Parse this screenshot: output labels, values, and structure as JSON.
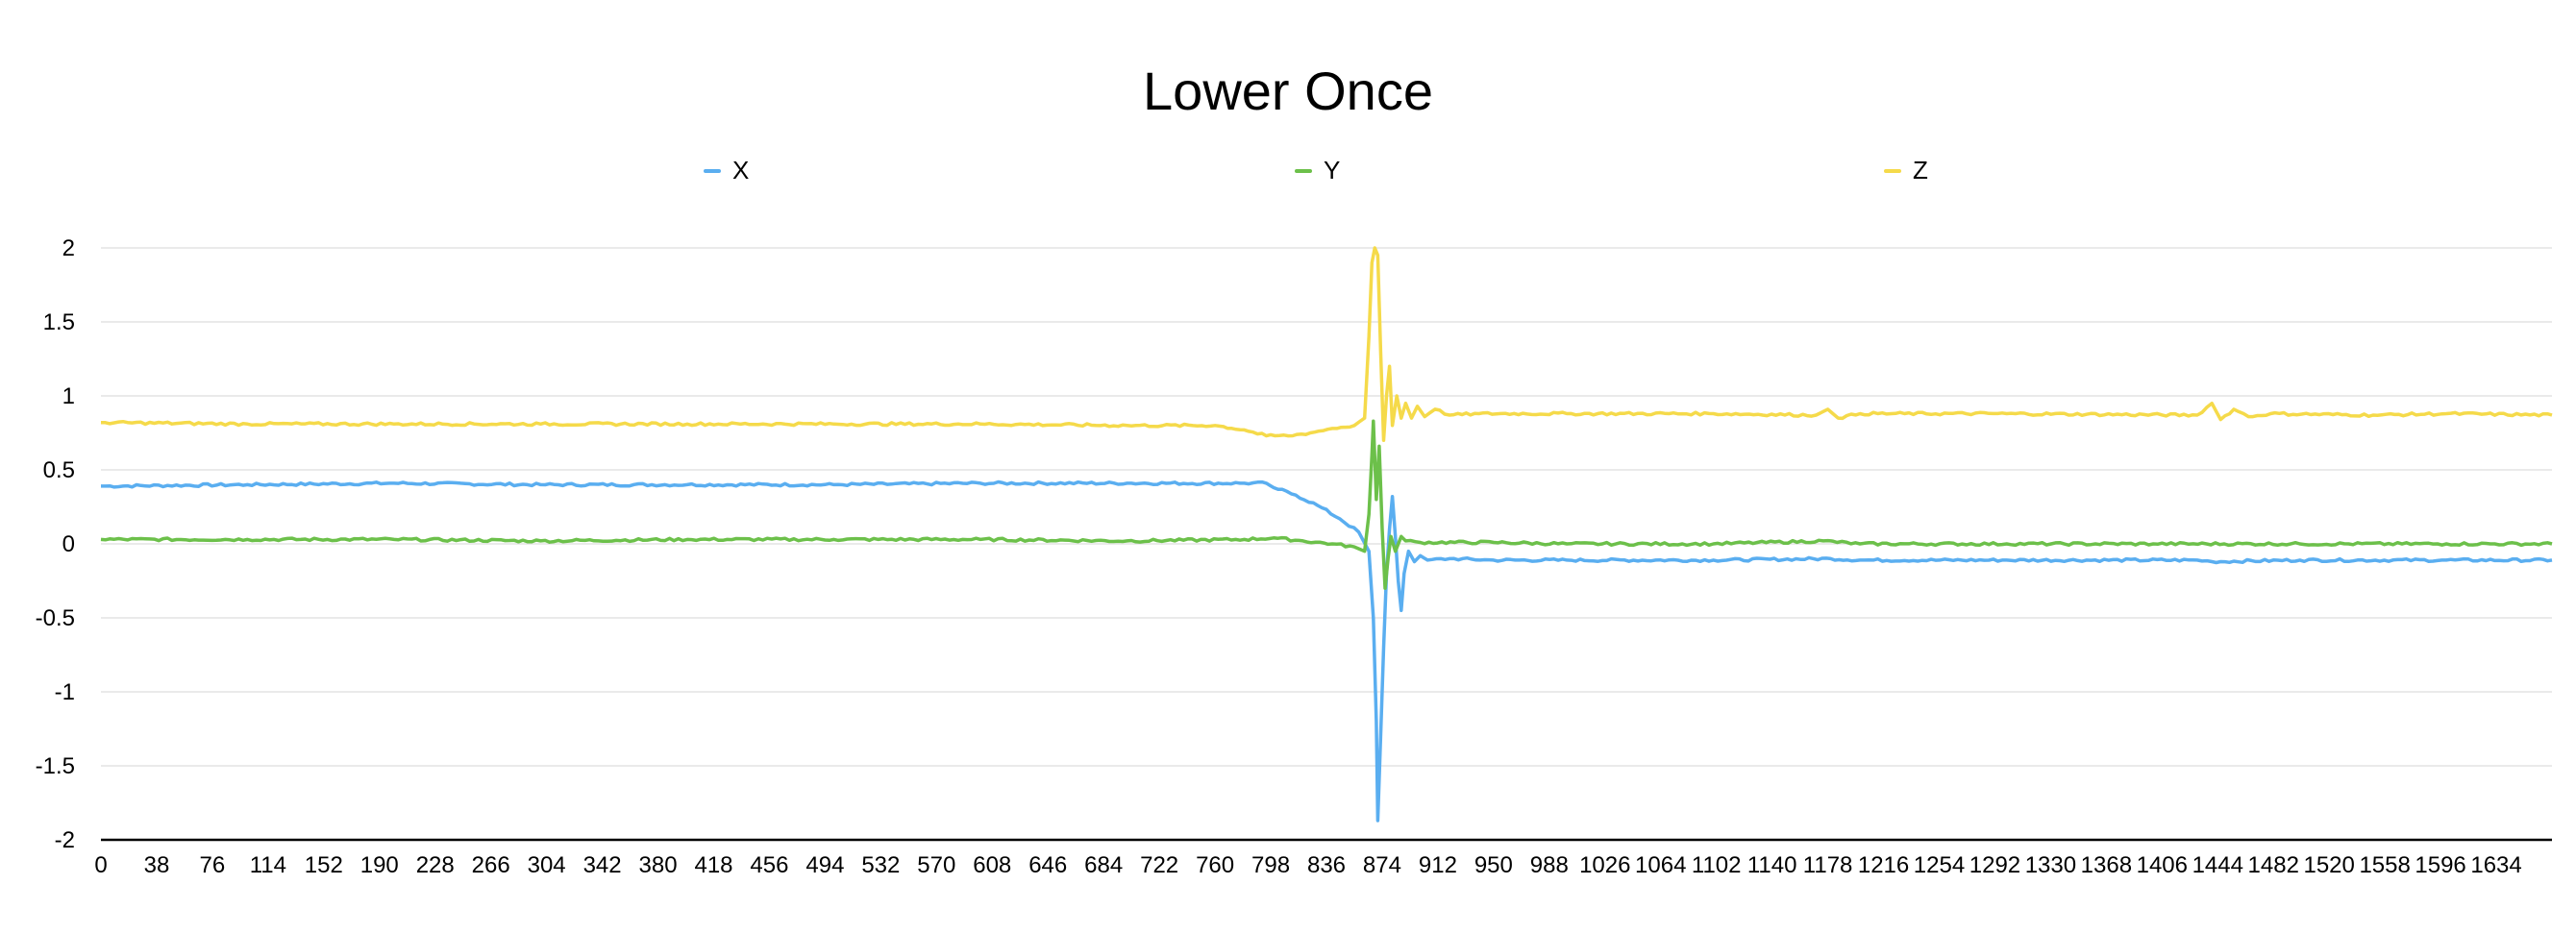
{
  "chart_data": {
    "type": "line",
    "title": "Lower Once",
    "xlabel": "",
    "ylabel": "",
    "ylim": [
      -2,
      2
    ],
    "xlim": [
      0,
      1672
    ],
    "yticks": [
      "-2",
      "-1.5",
      "-1",
      "-0.5",
      "0",
      "0.5",
      "1",
      "1.5",
      "2"
    ],
    "xticks": [
      "0",
      "38",
      "76",
      "114",
      "152",
      "190",
      "228",
      "266",
      "304",
      "342",
      "380",
      "418",
      "456",
      "494",
      "532",
      "570",
      "608",
      "646",
      "684",
      "722",
      "760",
      "798",
      "836",
      "874",
      "912",
      "950",
      "988",
      "1026",
      "1064",
      "1102",
      "1140",
      "1178",
      "1216",
      "1254",
      "1292",
      "1330",
      "1368",
      "1406",
      "1444",
      "1482",
      "1520",
      "1558",
      "1596",
      "1634"
    ],
    "grid": true,
    "legend_position": "top",
    "series": [
      {
        "name": "X",
        "color": "#5aaef0",
        "points": [
          [
            0,
            0.39
          ],
          [
            100,
            0.4
          ],
          [
            200,
            0.41
          ],
          [
            300,
            0.4
          ],
          [
            400,
            0.4
          ],
          [
            500,
            0.4
          ],
          [
            600,
            0.41
          ],
          [
            700,
            0.41
          ],
          [
            780,
            0.41
          ],
          [
            795,
            0.41
          ],
          [
            800,
            0.38
          ],
          [
            815,
            0.33
          ],
          [
            830,
            0.26
          ],
          [
            845,
            0.17
          ],
          [
            858,
            0.08
          ],
          [
            865,
            -0.05
          ],
          [
            868,
            -0.5
          ],
          [
            870,
            -1.2
          ],
          [
            871,
            -1.87
          ],
          [
            873,
            -1.3
          ],
          [
            875,
            -0.7
          ],
          [
            877,
            -0.2
          ],
          [
            879,
            0.1
          ],
          [
            881,
            0.32
          ],
          [
            883,
            0.05
          ],
          [
            885,
            -0.25
          ],
          [
            887,
            -0.45
          ],
          [
            889,
            -0.2
          ],
          [
            892,
            -0.05
          ],
          [
            896,
            -0.12
          ],
          [
            900,
            -0.08
          ],
          [
            905,
            -0.11
          ],
          [
            920,
            -0.1
          ],
          [
            950,
            -0.11
          ],
          [
            1000,
            -0.11
          ],
          [
            1100,
            -0.11
          ],
          [
            1180,
            -0.1
          ],
          [
            1200,
            -0.11
          ],
          [
            1300,
            -0.11
          ],
          [
            1430,
            -0.11
          ],
          [
            1440,
            -0.12
          ],
          [
            1500,
            -0.11
          ],
          [
            1600,
            -0.11
          ],
          [
            1672,
            -0.11
          ]
        ]
      },
      {
        "name": "Y",
        "color": "#6cc04a",
        "points": [
          [
            0,
            0.03
          ],
          [
            100,
            0.03
          ],
          [
            200,
            0.03
          ],
          [
            300,
            0.02
          ],
          [
            400,
            0.03
          ],
          [
            500,
            0.03
          ],
          [
            600,
            0.03
          ],
          [
            700,
            0.02
          ],
          [
            780,
            0.03
          ],
          [
            800,
            0.04
          ],
          [
            820,
            0.02
          ],
          [
            840,
            0.0
          ],
          [
            855,
            -0.02
          ],
          [
            862,
            -0.05
          ],
          [
            865,
            0.2
          ],
          [
            867,
            0.6
          ],
          [
            868,
            0.83
          ],
          [
            870,
            0.3
          ],
          [
            872,
            0.66
          ],
          [
            874,
            0.1
          ],
          [
            876,
            -0.3
          ],
          [
            878,
            -0.1
          ],
          [
            880,
            0.05
          ],
          [
            883,
            -0.05
          ],
          [
            887,
            0.05
          ],
          [
            890,
            0.02
          ],
          [
            900,
            0.01
          ],
          [
            950,
            0.01
          ],
          [
            1000,
            0.0
          ],
          [
            1100,
            0.0
          ],
          [
            1175,
            0.02
          ],
          [
            1200,
            0.0
          ],
          [
            1300,
            0.0
          ],
          [
            1400,
            0.0
          ],
          [
            1500,
            0.0
          ],
          [
            1600,
            0.0
          ],
          [
            1672,
            0.0
          ]
        ]
      },
      {
        "name": "Z",
        "color": "#f5da4a",
        "points": [
          [
            0,
            0.82
          ],
          [
            100,
            0.81
          ],
          [
            200,
            0.81
          ],
          [
            300,
            0.81
          ],
          [
            400,
            0.81
          ],
          [
            500,
            0.81
          ],
          [
            600,
            0.81
          ],
          [
            700,
            0.8
          ],
          [
            760,
            0.8
          ],
          [
            780,
            0.77
          ],
          [
            795,
            0.73
          ],
          [
            810,
            0.73
          ],
          [
            825,
            0.75
          ],
          [
            840,
            0.78
          ],
          [
            855,
            0.8
          ],
          [
            862,
            0.85
          ],
          [
            865,
            1.4
          ],
          [
            867,
            1.9
          ],
          [
            869,
            2.0
          ],
          [
            871,
            1.95
          ],
          [
            873,
            1.3
          ],
          [
            875,
            0.7
          ],
          [
            877,
            1.0
          ],
          [
            879,
            1.2
          ],
          [
            881,
            0.8
          ],
          [
            884,
            1.0
          ],
          [
            887,
            0.85
          ],
          [
            890,
            0.95
          ],
          [
            894,
            0.85
          ],
          [
            898,
            0.93
          ],
          [
            903,
            0.86
          ],
          [
            910,
            0.91
          ],
          [
            920,
            0.87
          ],
          [
            940,
            0.88
          ],
          [
            1000,
            0.88
          ],
          [
            1100,
            0.88
          ],
          [
            1170,
            0.87
          ],
          [
            1178,
            0.91
          ],
          [
            1185,
            0.85
          ],
          [
            1200,
            0.88
          ],
          [
            1300,
            0.88
          ],
          [
            1430,
            0.87
          ],
          [
            1440,
            0.95
          ],
          [
            1446,
            0.84
          ],
          [
            1455,
            0.91
          ],
          [
            1465,
            0.86
          ],
          [
            1480,
            0.88
          ],
          [
            1550,
            0.87
          ],
          [
            1600,
            0.88
          ],
          [
            1672,
            0.87
          ]
        ]
      }
    ]
  }
}
